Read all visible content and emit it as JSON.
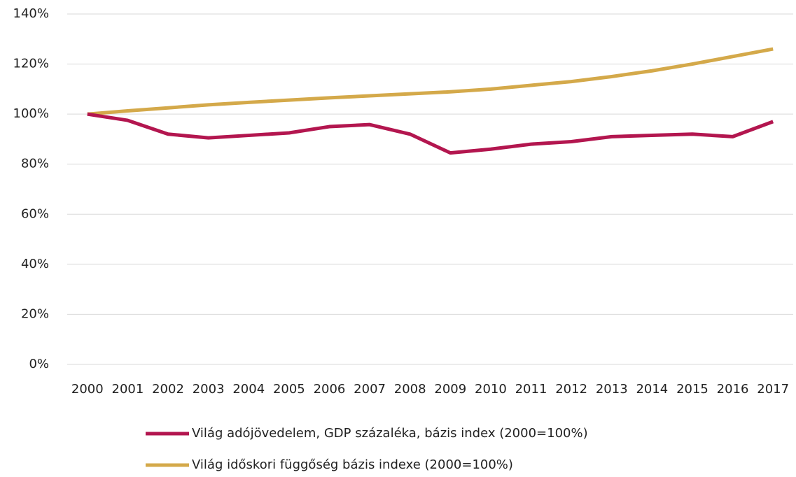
{
  "chart_data": {
    "type": "line",
    "categories": [
      "2000",
      "2001",
      "2002",
      "2003",
      "2004",
      "2005",
      "2006",
      "2007",
      "2008",
      "2009",
      "2010",
      "2011",
      "2012",
      "2013",
      "2014",
      "2015",
      "2016",
      "2017"
    ],
    "series": [
      {
        "name": "Világ adójövedelem, GDP százaléka, bázis index (2000=100%)",
        "color": "#b3164f",
        "values": [
          100,
          97.5,
          92,
          90.5,
          91.5,
          92.5,
          95,
          95.8,
          92,
          84.5,
          86,
          88,
          89,
          91,
          91.5,
          92,
          91,
          97
        ]
      },
      {
        "name": "Világ időskori függőség bázis indexe (2000=100%)",
        "color": "#d4a94a",
        "values": [
          100,
          101.3,
          102.5,
          103.7,
          104.7,
          105.6,
          106.5,
          107.3,
          108.1,
          108.9,
          110,
          111.5,
          113,
          115,
          117.3,
          120,
          123,
          126
        ]
      }
    ],
    "ylim": [
      0,
      140
    ],
    "yticks": [
      {
        "value": 0,
        "label": "0%"
      },
      {
        "value": 20,
        "label": "20%"
      },
      {
        "value": 40,
        "label": "40%"
      },
      {
        "value": 60,
        "label": "60%"
      },
      {
        "value": 80,
        "label": "80%"
      },
      {
        "value": 100,
        "label": "100%"
      },
      {
        "value": 120,
        "label": "120%"
      },
      {
        "value": 140,
        "label": "140%"
      }
    ],
    "grid": true,
    "legend": "bottom"
  }
}
